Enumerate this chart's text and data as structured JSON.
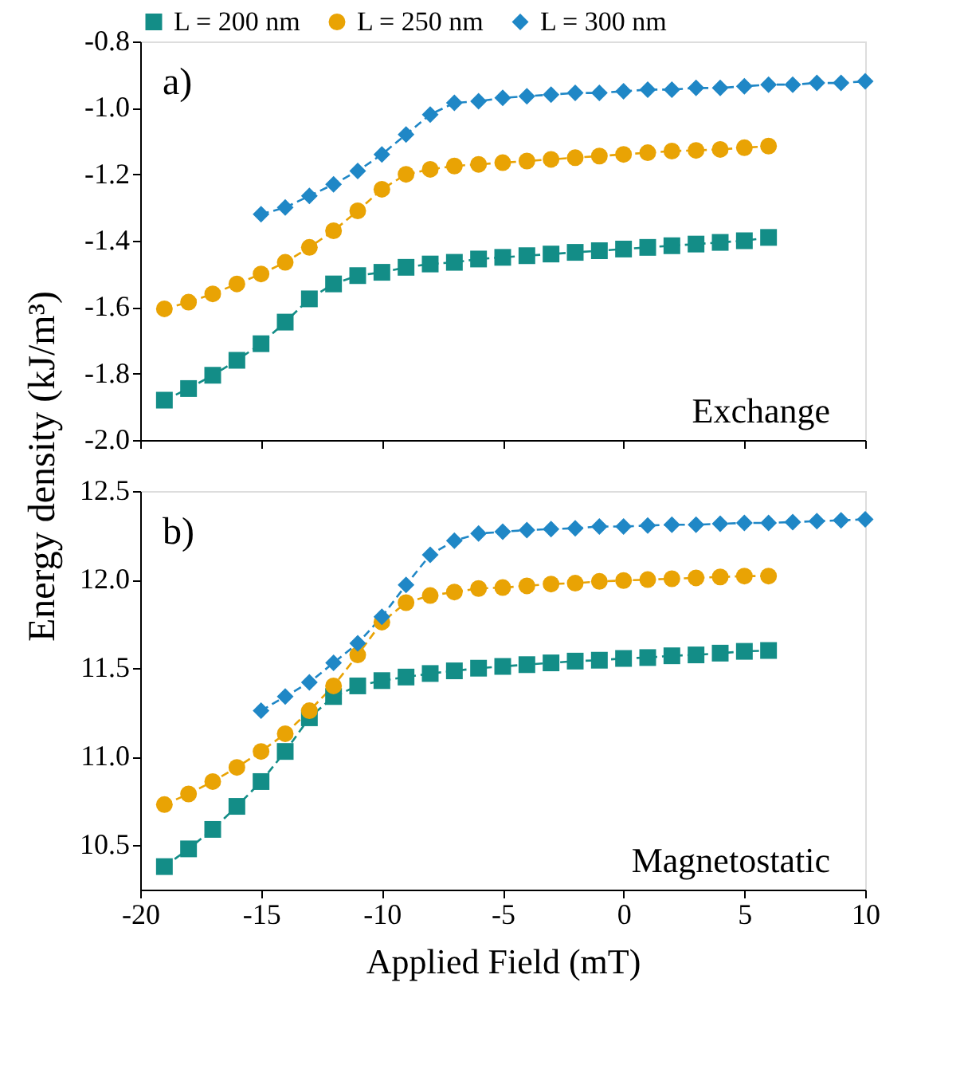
{
  "chart_data": [
    {
      "type": "line",
      "ylabel": "Energy density (kJ/m³)",
      "annotations": [
        "a)",
        "Exchange"
      ],
      "legend": "top",
      "tick_labels": "y",
      "line_style": "dashed",
      "xlim": [
        -20,
        10
      ],
      "xticks": [
        -20,
        -15,
        -10,
        -5,
        0,
        5,
        10
      ],
      "ylim": [
        -2.0,
        -0.8
      ],
      "yticks": [
        {
          "value": -2.0,
          "label": "-2.0"
        },
        -1.8,
        -1.6,
        -1.4,
        -1.2,
        {
          "value": -1.0,
          "label": "-1.0"
        },
        -0.8
      ],
      "series": [
        {
          "name": "L = 200 nm",
          "color": "#138d87",
          "marker": "square",
          "x": [
            -19,
            -18,
            -17,
            -16,
            -15,
            -14,
            -13,
            -12,
            -11,
            -10,
            -9,
            -8,
            -7,
            -6,
            -5,
            -4,
            -3,
            -2,
            -1,
            0,
            1,
            2,
            3,
            4,
            5,
            6
          ],
          "values": [
            -1.88,
            -1.845,
            -1.805,
            -1.76,
            -1.71,
            -1.645,
            -1.575,
            -1.53,
            -1.505,
            -1.495,
            -1.48,
            -1.47,
            -1.465,
            -1.455,
            -1.45,
            -1.445,
            -1.44,
            -1.435,
            -1.43,
            -1.425,
            -1.42,
            -1.415,
            -1.41,
            -1.405,
            -1.4,
            -1.39
          ]
        },
        {
          "name": "L = 250 nm",
          "color": "#e9a304",
          "marker": "circle",
          "x": [
            -19,
            -18,
            -17,
            -16,
            -15,
            -14,
            -13,
            -12,
            -11,
            -10,
            -9,
            -8,
            -7,
            -6,
            -5,
            -4,
            -3,
            -2,
            -1,
            0,
            1,
            2,
            3,
            4,
            5,
            6
          ],
          "values": [
            -1.605,
            -1.585,
            -1.56,
            -1.53,
            -1.5,
            -1.465,
            -1.42,
            -1.37,
            -1.31,
            -1.245,
            -1.2,
            -1.185,
            -1.175,
            -1.17,
            -1.165,
            -1.16,
            -1.155,
            -1.15,
            -1.145,
            -1.14,
            -1.135,
            -1.13,
            -1.128,
            -1.125,
            -1.12,
            -1.115
          ]
        },
        {
          "name": "L = 300 nm",
          "color": "#1f87c6",
          "marker": "diamond",
          "x": [
            -15,
            -14,
            -13,
            -12,
            -11,
            -10,
            -9,
            -8,
            -7,
            -6,
            -5,
            -4,
            -3,
            -2,
            -1,
            0,
            1,
            2,
            3,
            4,
            5,
            6,
            7,
            8,
            9,
            10
          ],
          "values": [
            -1.32,
            -1.3,
            -1.265,
            -1.23,
            -1.19,
            -1.14,
            -1.08,
            -1.02,
            -0.985,
            -0.98,
            -0.97,
            -0.965,
            -0.96,
            -0.955,
            -0.955,
            -0.95,
            -0.945,
            -0.945,
            -0.94,
            -0.94,
            -0.935,
            -0.93,
            -0.93,
            -0.925,
            -0.925,
            -0.92
          ]
        }
      ]
    },
    {
      "type": "line",
      "xlabel": "Applied Field (mT)",
      "annotations": [
        "b)",
        "Magnetostatic"
      ],
      "line_style": "dashed",
      "xlim": [
        -20,
        10
      ],
      "xticks": [
        -20,
        -15,
        -10,
        -5,
        0,
        5,
        10
      ],
      "ylim": [
        10.25,
        12.5
      ],
      "yticks": [
        10.5,
        {
          "value": 11.0,
          "label": "11.0"
        },
        11.5,
        {
          "value": 12.0,
          "label": "12.0"
        },
        12.5
      ],
      "series": [
        {
          "color": "#138d87",
          "marker": "square",
          "x": [
            -19,
            -18,
            -17,
            -16,
            -15,
            -14,
            -13,
            -12,
            -11,
            -10,
            -9,
            -8,
            -7,
            -6,
            -5,
            -4,
            -3,
            -2,
            -1,
            0,
            1,
            2,
            3,
            4,
            5,
            6
          ],
          "values": [
            10.38,
            10.48,
            10.59,
            10.72,
            10.86,
            11.03,
            11.22,
            11.34,
            11.4,
            11.43,
            11.45,
            11.47,
            11.485,
            11.5,
            11.51,
            11.52,
            11.53,
            11.54,
            11.545,
            11.555,
            11.56,
            11.57,
            11.575,
            11.585,
            11.595,
            11.6
          ]
        },
        {
          "color": "#e9a304",
          "marker": "circle",
          "x": [
            -19,
            -18,
            -17,
            -16,
            -15,
            -14,
            -13,
            -12,
            -11,
            -10,
            -9,
            -8,
            -7,
            -6,
            -5,
            -4,
            -3,
            -2,
            -1,
            0,
            1,
            2,
            3,
            4,
            5,
            6
          ],
          "values": [
            10.73,
            10.79,
            10.86,
            10.94,
            11.03,
            11.13,
            11.26,
            11.4,
            11.575,
            11.76,
            11.87,
            11.91,
            11.93,
            11.95,
            11.955,
            11.965,
            11.975,
            11.98,
            11.99,
            11.995,
            12.0,
            12.005,
            12.01,
            12.015,
            12.02,
            12.02
          ]
        },
        {
          "color": "#1f87c6",
          "marker": "diamond",
          "x": [
            -15,
            -14,
            -13,
            -12,
            -11,
            -10,
            -9,
            -8,
            -7,
            -6,
            -5,
            -4,
            -3,
            -2,
            -1,
            0,
            1,
            2,
            3,
            4,
            5,
            6,
            7,
            8,
            9,
            10
          ],
          "values": [
            11.26,
            11.34,
            11.42,
            11.53,
            11.64,
            11.79,
            11.97,
            12.14,
            12.22,
            12.26,
            12.27,
            12.28,
            12.285,
            12.29,
            12.3,
            12.3,
            12.305,
            12.31,
            12.31,
            12.315,
            12.32,
            12.32,
            12.325,
            12.33,
            12.335,
            12.34
          ]
        }
      ]
    }
  ]
}
